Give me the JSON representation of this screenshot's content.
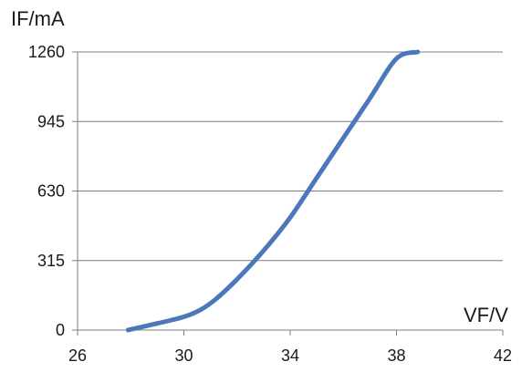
{
  "chart_data": {
    "type": "line",
    "title": "",
    "xlabel": "VF/V",
    "ylabel": "IF/mA",
    "xlim": [
      26,
      42
    ],
    "ylim": [
      0,
      1260
    ],
    "xticks": [
      26,
      30,
      34,
      38,
      42
    ],
    "yticks": [
      0,
      315,
      630,
      945,
      1260
    ],
    "grid": "horizontal",
    "series": [
      {
        "color": "#4a78b8",
        "x": [
          27.9,
          29.0,
          30.0,
          30.6,
          31.2,
          32.0,
          33.0,
          34.0,
          35.0,
          36.0,
          37.0,
          38.0,
          38.8
        ],
        "y": [
          0,
          30,
          60,
          90,
          140,
          230,
          360,
          510,
          690,
          870,
          1050,
          1230,
          1260
        ]
      }
    ]
  }
}
